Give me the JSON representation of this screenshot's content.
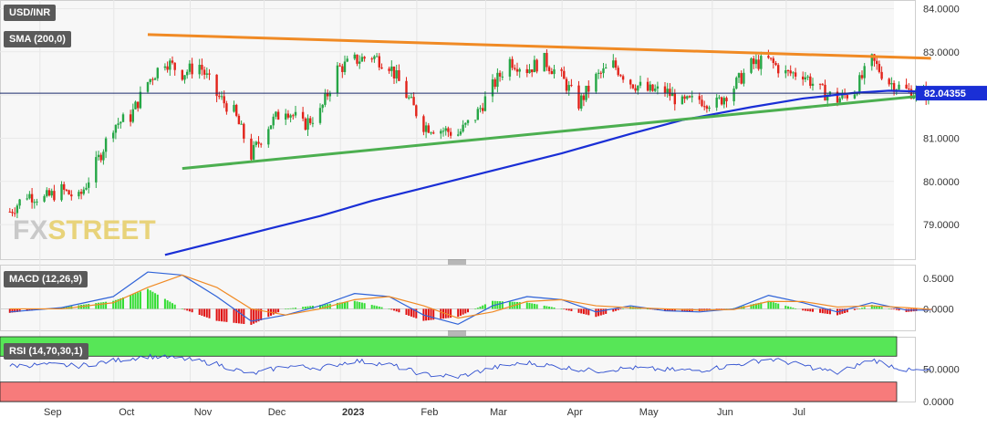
{
  "header": {
    "symbol": "USD/INR",
    "sma_label": "SMA (200,0)",
    "last_price": "82.04355"
  },
  "watermark": {
    "fx": "FX",
    "street": "STREET"
  },
  "colors": {
    "bull": "#26a646",
    "bear": "#e2231a",
    "sma": "#1a2fd6",
    "resistance": "#f08a24",
    "support": "#4caf50",
    "macd_line": "#2f63d8",
    "signal_line": "#f08a24",
    "rsi_line": "#2f4fd0",
    "rsi_over": "#57e657",
    "rsi_under": "#f77b7b",
    "price_tag": "#1a2fd6"
  },
  "chart_data": [
    {
      "type": "candlestick",
      "title": "USD/INR",
      "x_months": [
        "Sep",
        "Oct",
        "Nov",
        "Dec",
        "2023",
        "Feb",
        "Mar",
        "Apr",
        "May",
        "Jun",
        "Jul"
      ],
      "y_ticks": [
        "84.0000",
        "83.0000",
        "82.0000",
        "81.0000",
        "80.0000",
        "79.0000"
      ],
      "ylim": [
        78.2,
        84.2
      ],
      "last_price": 82.04355,
      "close_path": [
        [
          "2022-08-22",
          79.3
        ],
        [
          "2022-08-29",
          79.7
        ],
        [
          "2022-09-05",
          79.6
        ],
        [
          "2022-09-12",
          79.8
        ],
        [
          "2022-09-19",
          79.6
        ],
        [
          "2022-09-26",
          80.4
        ],
        [
          "2022-10-03",
          81.3
        ],
        [
          "2022-10-10",
          81.5
        ],
        [
          "2022-10-17",
          82.3
        ],
        [
          "2022-10-24",
          82.8
        ],
        [
          "2022-10-31",
          82.5
        ],
        [
          "2022-11-07",
          82.7
        ],
        [
          "2022-11-14",
          82.0
        ],
        [
          "2022-11-21",
          81.6
        ],
        [
          "2022-11-28",
          80.6
        ],
        [
          "2022-12-05",
          81.3
        ],
        [
          "2022-12-12",
          81.7
        ],
        [
          "2022-12-19",
          81.3
        ],
        [
          "2022-12-26",
          81.6
        ],
        [
          "2023-01-02",
          82.6
        ],
        [
          "2023-01-09",
          82.8
        ],
        [
          "2023-01-16",
          82.9
        ],
        [
          "2023-01-23",
          82.7
        ],
        [
          "2023-01-30",
          82.0
        ],
        [
          "2023-02-06",
          81.3
        ],
        [
          "2023-02-13",
          81.2
        ],
        [
          "2023-02-20",
          81.1
        ],
        [
          "2023-02-27",
          81.5
        ],
        [
          "2023-03-06",
          82.2
        ],
        [
          "2023-03-13",
          82.8
        ],
        [
          "2023-03-20",
          82.6
        ],
        [
          "2023-03-27",
          82.8
        ],
        [
          "2023-04-03",
          82.4
        ],
        [
          "2023-04-10",
          81.8
        ],
        [
          "2023-04-17",
          82.4
        ],
        [
          "2023-04-24",
          82.7
        ],
        [
          "2023-05-01",
          82.3
        ],
        [
          "2023-05-08",
          82.1
        ],
        [
          "2023-05-15",
          82.1
        ],
        [
          "2023-05-22",
          81.8
        ],
        [
          "2023-05-29",
          81.9
        ],
        [
          "2023-06-05",
          81.8
        ],
        [
          "2023-06-12",
          82.2
        ],
        [
          "2023-06-19",
          82.7
        ],
        [
          "2023-06-26",
          82.8
        ],
        [
          "2023-07-03",
          82.5
        ],
        [
          "2023-07-10",
          82.5
        ],
        [
          "2023-07-17",
          82.1
        ],
        [
          "2023-07-24",
          81.9
        ],
        [
          "2023-07-31",
          82.1
        ],
        [
          "2023-08-07",
          82.8
        ],
        [
          "2023-08-14",
          82.3
        ],
        [
          "2023-08-21",
          82.1
        ],
        [
          "2023-08-28",
          82.04
        ]
      ],
      "sma_200": [
        [
          "2022-10-24",
          78.3
        ],
        [
          "2022-11-14",
          78.6
        ],
        [
          "2022-12-05",
          78.9
        ],
        [
          "2022-12-26",
          79.2
        ],
        [
          "2023-01-16",
          79.55
        ],
        [
          "2023-02-06",
          79.85
        ],
        [
          "2023-03-06",
          80.25
        ],
        [
          "2023-04-03",
          80.65
        ],
        [
          "2023-05-01",
          81.1
        ],
        [
          "2023-05-22",
          81.42
        ],
        [
          "2023-06-19",
          81.72
        ],
        [
          "2023-07-10",
          81.92
        ],
        [
          "2023-07-31",
          82.05
        ],
        [
          "2023-08-14",
          82.1
        ],
        [
          "2023-08-28",
          82.08
        ]
      ],
      "resistance_line": [
        [
          "2022-10-17",
          83.4
        ],
        [
          "2023-08-31",
          82.85
        ]
      ],
      "support_line": [
        [
          "2022-10-31",
          80.3
        ],
        [
          "2023-08-31",
          82.0
        ]
      ]
    },
    {
      "type": "macd",
      "title": "MACD (12,26,9)",
      "y_ticks": [
        "0.5000",
        "0.0000"
      ],
      "ylim": [
        -0.35,
        0.72
      ],
      "macd": [
        [
          "2022-08-22",
          -0.05
        ],
        [
          "2022-09-12",
          0.02
        ],
        [
          "2022-10-03",
          0.2
        ],
        [
          "2022-10-17",
          0.6
        ],
        [
          "2022-10-31",
          0.55
        ],
        [
          "2022-11-14",
          0.2
        ],
        [
          "2022-11-28",
          -0.2
        ],
        [
          "2022-12-12",
          -0.1
        ],
        [
          "2022-12-26",
          0.05
        ],
        [
          "2023-01-09",
          0.25
        ],
        [
          "2023-01-23",
          0.2
        ],
        [
          "2023-02-06",
          -0.1
        ],
        [
          "2023-02-20",
          -0.25
        ],
        [
          "2023-03-06",
          0.05
        ],
        [
          "2023-03-20",
          0.2
        ],
        [
          "2023-04-03",
          0.15
        ],
        [
          "2023-04-17",
          -0.05
        ],
        [
          "2023-05-01",
          0.05
        ],
        [
          "2023-05-15",
          -0.03
        ],
        [
          "2023-05-29",
          -0.05
        ],
        [
          "2023-06-12",
          0.0
        ],
        [
          "2023-06-26",
          0.22
        ],
        [
          "2023-07-10",
          0.1
        ],
        [
          "2023-07-24",
          -0.05
        ],
        [
          "2023-08-07",
          0.1
        ],
        [
          "2023-08-21",
          -0.02
        ],
        [
          "2023-08-31",
          -0.02
        ]
      ],
      "signal": [
        [
          "2022-08-22",
          0.0
        ],
        [
          "2022-09-12",
          0.0
        ],
        [
          "2022-10-03",
          0.1
        ],
        [
          "2022-10-17",
          0.35
        ],
        [
          "2022-10-31",
          0.55
        ],
        [
          "2022-11-14",
          0.35
        ],
        [
          "2022-11-28",
          0.0
        ],
        [
          "2022-12-12",
          -0.1
        ],
        [
          "2022-12-26",
          0.0
        ],
        [
          "2023-01-09",
          0.15
        ],
        [
          "2023-01-23",
          0.2
        ],
        [
          "2023-02-06",
          0.05
        ],
        [
          "2023-02-20",
          -0.15
        ],
        [
          "2023-03-06",
          -0.05
        ],
        [
          "2023-03-20",
          0.12
        ],
        [
          "2023-04-03",
          0.15
        ],
        [
          "2023-04-17",
          0.05
        ],
        [
          "2023-05-01",
          0.02
        ],
        [
          "2023-05-15",
          0.0
        ],
        [
          "2023-05-29",
          -0.02
        ],
        [
          "2023-06-12",
          -0.01
        ],
        [
          "2023-06-26",
          0.12
        ],
        [
          "2023-07-10",
          0.12
        ],
        [
          "2023-07-24",
          0.03
        ],
        [
          "2023-08-07",
          0.05
        ],
        [
          "2023-08-21",
          0.02
        ],
        [
          "2023-08-31",
          -0.01
        ]
      ]
    },
    {
      "type": "rsi",
      "title": "RSI (14,70,30,1)",
      "y_ticks": [
        "50.0000",
        "0.0000"
      ],
      "ylim": [
        0,
        100
      ],
      "overbought": 70,
      "oversold": 30,
      "rsi": [
        [
          "2022-08-22",
          55
        ],
        [
          "2022-09-05",
          57
        ],
        [
          "2022-09-19",
          55
        ],
        [
          "2022-10-03",
          63
        ],
        [
          "2022-10-17",
          70
        ],
        [
          "2022-10-31",
          66
        ],
        [
          "2022-11-14",
          58
        ],
        [
          "2022-11-28",
          42
        ],
        [
          "2022-12-12",
          55
        ],
        [
          "2022-12-26",
          52
        ],
        [
          "2023-01-09",
          63
        ],
        [
          "2023-01-23",
          57
        ],
        [
          "2023-02-06",
          42
        ],
        [
          "2023-02-20",
          38
        ],
        [
          "2023-03-06",
          52
        ],
        [
          "2023-03-20",
          60
        ],
        [
          "2023-04-03",
          53
        ],
        [
          "2023-04-17",
          47
        ],
        [
          "2023-05-01",
          52
        ],
        [
          "2023-05-15",
          49
        ],
        [
          "2023-05-29",
          48
        ],
        [
          "2023-06-12",
          56
        ],
        [
          "2023-06-26",
          66
        ],
        [
          "2023-07-10",
          56
        ],
        [
          "2023-07-24",
          44
        ],
        [
          "2023-08-07",
          65
        ],
        [
          "2023-08-21",
          48
        ],
        [
          "2023-08-31",
          47
        ]
      ]
    }
  ]
}
